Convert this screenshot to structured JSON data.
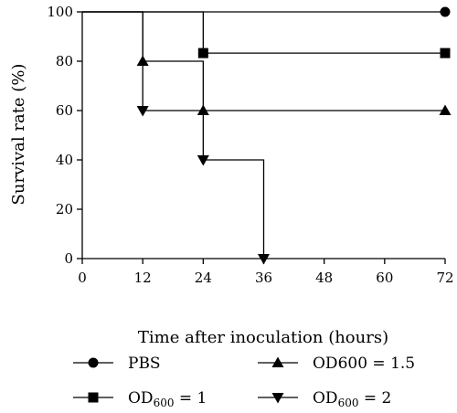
{
  "chart_data": {
    "type": "line",
    "step": true,
    "xlabel": "Time after inoculation (hours)",
    "ylabel": "Survival rate (%)",
    "xlim": [
      0,
      72
    ],
    "ylim": [
      0,
      100
    ],
    "xticks": [
      "0",
      "12",
      "24",
      "36",
      "48",
      "60",
      "72"
    ],
    "yticks": [
      "0",
      "20",
      "40",
      "60",
      "80",
      "100"
    ],
    "grid": false,
    "legend_position": "bottom",
    "series": [
      {
        "name": "PBS",
        "marker": "circle",
        "steps": [
          [
            0,
            100
          ],
          [
            72,
            100
          ]
        ],
        "markers": [
          [
            72,
            100
          ]
        ]
      },
      {
        "name_main": "OD",
        "name_sub": "600",
        "name_tail": " = 1",
        "marker": "square",
        "steps": [
          [
            0,
            100
          ],
          [
            24,
            100
          ],
          [
            24,
            83.3
          ],
          [
            72,
            83.3
          ]
        ],
        "markers": [
          [
            24,
            83.3
          ],
          [
            72,
            83.3
          ]
        ]
      },
      {
        "name_main": "OD600",
        "name_sub": "",
        "name_tail": " = 1.5",
        "marker": "triangle-up",
        "steps": [
          [
            0,
            100
          ],
          [
            12,
            100
          ],
          [
            12,
            80
          ],
          [
            24,
            80
          ],
          [
            24,
            60
          ],
          [
            72,
            60
          ]
        ],
        "markers": [
          [
            12,
            80
          ],
          [
            24,
            60
          ],
          [
            72,
            60
          ]
        ]
      },
      {
        "name_main": "OD",
        "name_sub": "600",
        "name_tail": " = 2",
        "marker": "triangle-down",
        "steps": [
          [
            0,
            100
          ],
          [
            12,
            100
          ],
          [
            12,
            60
          ],
          [
            24,
            60
          ],
          [
            24,
            40
          ],
          [
            36,
            40
          ],
          [
            36,
            0
          ]
        ],
        "markers": [
          [
            12,
            60
          ],
          [
            24,
            40
          ],
          [
            36,
            0
          ]
        ]
      }
    ]
  }
}
